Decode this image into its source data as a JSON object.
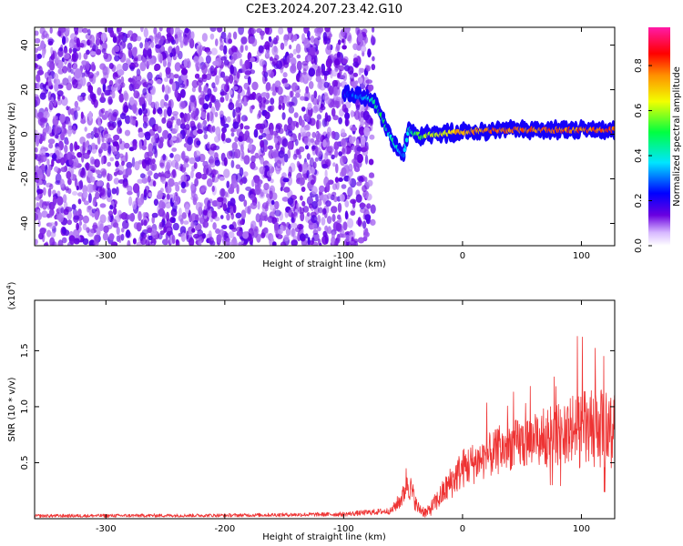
{
  "title": "C2E3.2024.207.23.42.G10",
  "chart_data": [
    {
      "type": "heatmap",
      "panel": "top",
      "xlabel": "Height of straight line (km)",
      "ylabel": "Frequency (Hz)",
      "xlim": [
        -360,
        128
      ],
      "ylim": [
        -50,
        48
      ],
      "x_ticks": [
        {
          "value": -300,
          "label": "-300"
        },
        {
          "value": -200,
          "label": "-200"
        },
        {
          "value": -100,
          "label": "-100"
        },
        {
          "value": 0,
          "label": "0"
        },
        {
          "value": 100,
          "label": "100"
        }
      ],
      "y_ticks": [
        {
          "value": -40,
          "label": "-40"
        },
        {
          "value": -20,
          "label": "-20"
        },
        {
          "value": 0,
          "label": "0"
        },
        {
          "value": 20,
          "label": "20"
        },
        {
          "value": 40,
          "label": "40"
        }
      ],
      "noise_region_x": [
        -360,
        -75
      ],
      "signal_track": {
        "x": [
          -100,
          -85,
          -75,
          -68,
          -62,
          -55,
          -50,
          -45,
          -40,
          -35,
          -30,
          -20,
          0,
          30,
          60,
          90,
          128
        ],
        "y": [
          18,
          17,
          15,
          8,
          0,
          -6,
          -10,
          3,
          0,
          -1,
          0,
          0,
          1,
          2,
          2,
          2,
          2
        ],
        "amp": [
          0.2,
          0.35,
          0.45,
          0.5,
          0.45,
          0.4,
          0.3,
          0.45,
          0.5,
          0.55,
          0.6,
          0.65,
          0.75,
          0.8,
          0.8,
          0.8,
          0.8
        ]
      }
    },
    {
      "type": "colorbar",
      "label": "Normalized spectral amplitude",
      "range": [
        0,
        0.97
      ],
      "ticks": [
        {
          "value": 0.0,
          "label": "0.0"
        },
        {
          "value": 0.2,
          "label": "0.2"
        },
        {
          "value": 0.4,
          "label": "0.4"
        },
        {
          "value": 0.6,
          "label": "0.6"
        },
        {
          "value": 0.8,
          "label": "0.8"
        }
      ]
    },
    {
      "type": "line",
      "panel": "bottom",
      "xlabel": "Height of straight line (km)",
      "ylabel": "SNR (10 * v/v)",
      "exponent_label": "(x10",
      "exponent_power": "4",
      "exponent_close": ")",
      "xlim": [
        -360,
        128
      ],
      "ylim": [
        0,
        19500
      ],
      "color": "#ee3333",
      "x_ticks": [
        {
          "value": -300,
          "label": "-300"
        },
        {
          "value": -200,
          "label": "-200"
        },
        {
          "value": -100,
          "label": "-100"
        },
        {
          "value": 0,
          "label": "0"
        },
        {
          "value": 100,
          "label": "100"
        }
      ],
      "y_ticks": [
        {
          "value": 5000,
          "label": "0.5"
        },
        {
          "value": 10000,
          "label": "1.0"
        },
        {
          "value": 15000,
          "label": "1.5"
        }
      ],
      "envelope": {
        "x": [
          -360,
          -200,
          -100,
          -60,
          -50,
          -47,
          -43,
          -38,
          -30,
          -20,
          -10,
          0,
          20,
          40,
          60,
          80,
          100,
          128
        ],
        "mean": [
          250,
          300,
          400,
          700,
          2000,
          3500,
          2500,
          1000,
          500,
          1800,
          3200,
          4500,
          5500,
          6500,
          7000,
          7500,
          8000,
          8000
        ],
        "spread": [
          150,
          150,
          200,
          300,
          1000,
          1500,
          1200,
          600,
          500,
          1000,
          1500,
          1800,
          2000,
          2200,
          2500,
          2800,
          3500,
          3500
        ]
      }
    }
  ]
}
